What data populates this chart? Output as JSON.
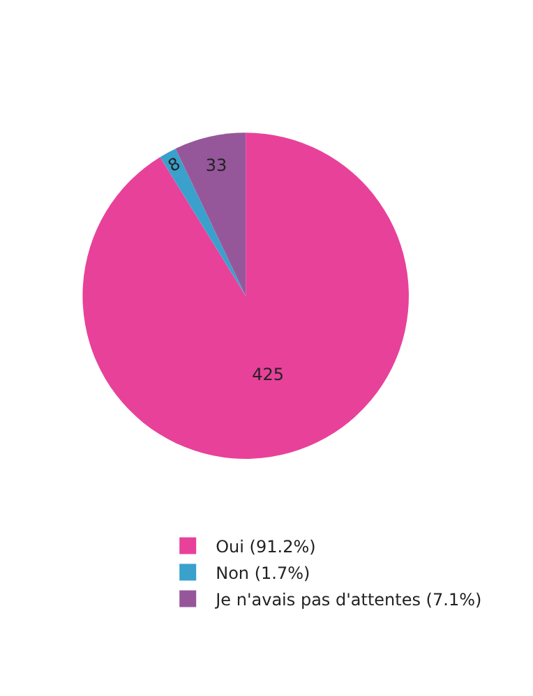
{
  "chart_data": {
    "type": "pie",
    "categories": [
      "Oui (91.2%)",
      "Non (1.7%)",
      "Je n'avais pas d'attentes (7.1%)"
    ],
    "values": [
      425,
      8,
      33
    ],
    "colors": [
      "#e8419a",
      "#3aa0cc",
      "#95579a"
    ],
    "data_labels": true,
    "legend": "bottom"
  }
}
